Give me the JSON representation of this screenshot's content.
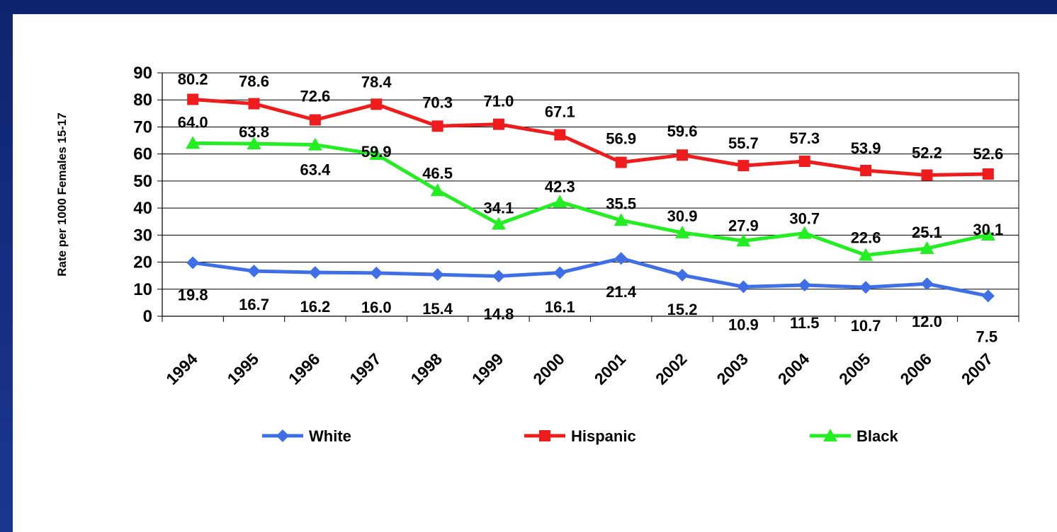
{
  "chart_data": {
    "type": "line",
    "title": "",
    "ylabel": "Rate per 1000 Females 15-17",
    "xlabel": "",
    "ylim": [
      0,
      90
    ],
    "yticks": [
      0,
      10,
      20,
      30,
      40,
      50,
      60,
      70,
      80,
      90
    ],
    "categories": [
      "1994",
      "1995",
      "1996",
      "1997",
      "1998",
      "1999",
      "2000",
      "2001",
      "2002",
      "2003",
      "2004",
      "2005",
      "2006",
      "2007"
    ],
    "grid": "horizontal",
    "legend_position": "bottom",
    "series": [
      {
        "name": "White",
        "color": "#3f6fe6",
        "marker": "diamond",
        "values": [
          19.8,
          16.7,
          16.2,
          16.0,
          15.4,
          14.8,
          16.1,
          21.4,
          15.2,
          10.9,
          11.5,
          10.7,
          12.0,
          7.5
        ],
        "labels": [
          "19.8",
          "16.7",
          "16.2",
          "16.0",
          "15.4",
          "14.8",
          "16.1",
          "21.4",
          "15.2",
          "10.9",
          "11.5",
          "10.7",
          "12.0",
          "7.5"
        ]
      },
      {
        "name": "Hispanic",
        "color": "#ee1c1c",
        "marker": "square",
        "values": [
          80.2,
          78.6,
          72.6,
          78.4,
          70.3,
          71.0,
          67.1,
          56.9,
          59.6,
          55.7,
          57.3,
          53.9,
          52.2,
          52.6
        ],
        "labels": [
          "80.2",
          "78.6",
          "72.6",
          "78.4",
          "70.3",
          "71.0",
          "67.1",
          "56.9",
          "59.6",
          "55.7",
          "57.3",
          "53.9",
          "52.2",
          "52.6"
        ]
      },
      {
        "name": "Black",
        "color": "#22ee22",
        "marker": "triangle",
        "values": [
          64.0,
          63.8,
          63.4,
          59.9,
          46.5,
          34.1,
          42.3,
          35.5,
          30.9,
          27.9,
          30.7,
          22.6,
          25.1,
          30.1
        ],
        "labels": [
          "64.0",
          "63.8",
          "63.4",
          "59.9",
          "46.5",
          "34.1",
          "42.3",
          "35.5",
          "30.9",
          "27.9",
          "30.7",
          "22.6",
          "25.1",
          "30.1"
        ]
      }
    ]
  }
}
